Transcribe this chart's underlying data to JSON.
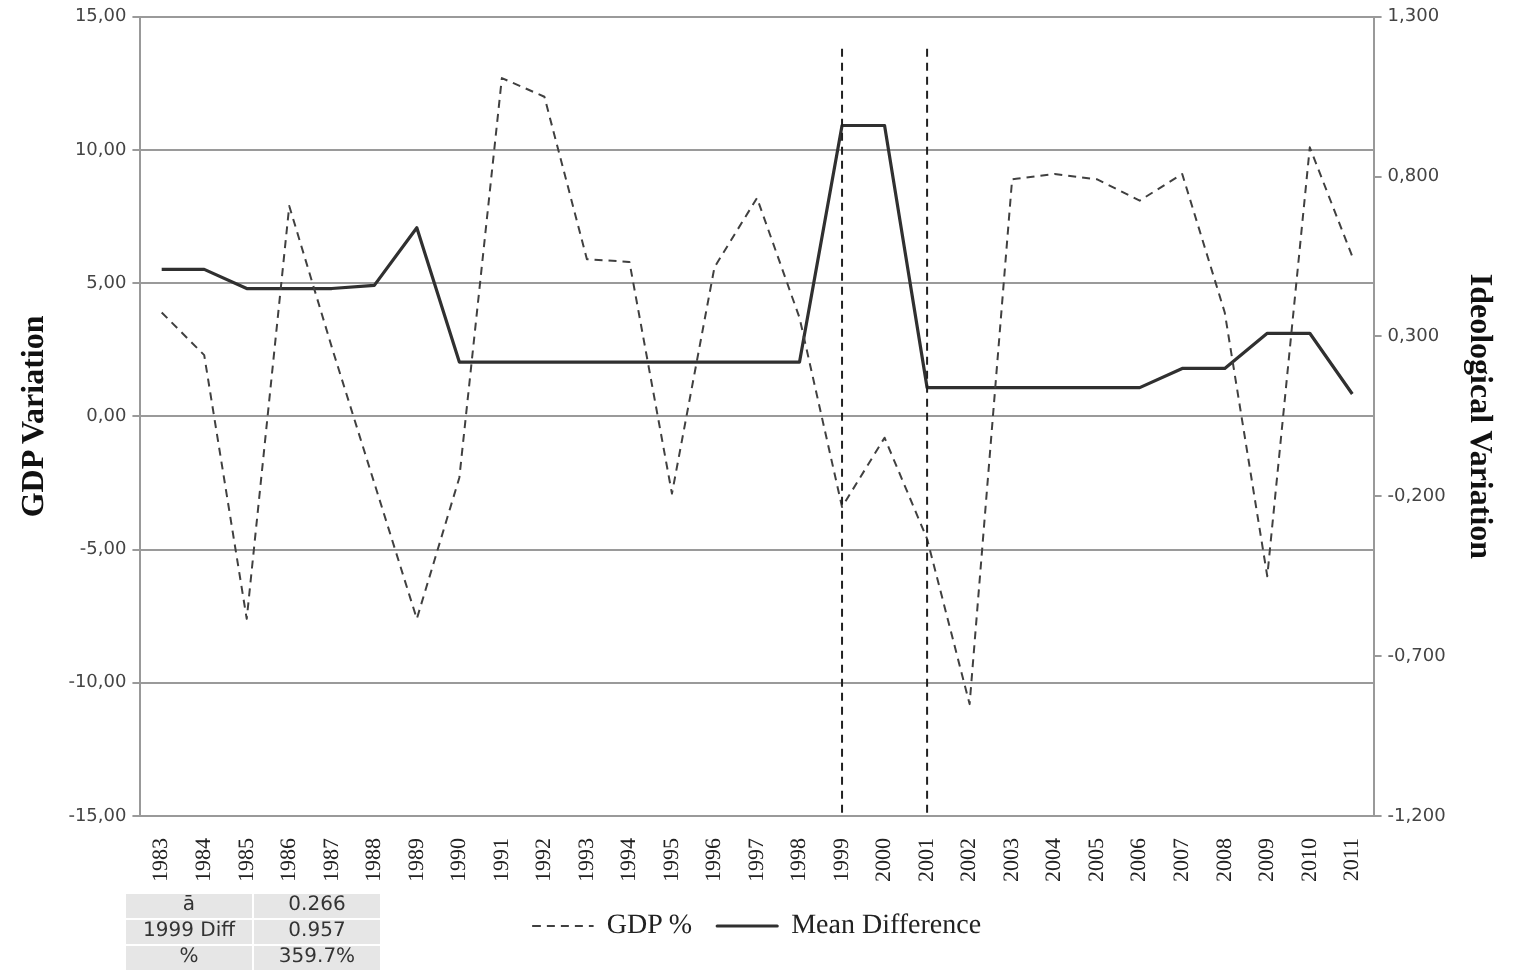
{
  "chart_data": {
    "type": "line",
    "xlabel": null,
    "ylabel": "GDP Variation",
    "y2label": "Ideological Variation",
    "categories": [
      "1983",
      "1984",
      "1985",
      "1986",
      "1987",
      "1988",
      "1989",
      "1990",
      "1991",
      "1992",
      "1993",
      "1994",
      "1995",
      "1996",
      "1997",
      "1998",
      "1999",
      "2000",
      "2001",
      "2002",
      "2003",
      "2004",
      "2005",
      "2006",
      "2007",
      "2008",
      "2009",
      "2010",
      "2011"
    ],
    "series": [
      {
        "name": "GDP %",
        "color": "#404040",
        "line_style": "dashed",
        "values": [
          3.9,
          2.3,
          -7.6,
          7.9,
          2.6,
          -2.5,
          -7.6,
          -2.3,
          12.7,
          12.0,
          5.9,
          5.8,
          -2.9,
          5.6,
          8.2,
          3.7,
          -3.4,
          -0.8,
          -4.6,
          -10.8,
          8.9,
          9.1,
          8.9,
          8.1,
          9.1,
          3.9,
          -6.0,
          10.1,
          6.0
        ]
      },
      {
        "name": "Mean Difference",
        "color": "#303030",
        "line_style": "solid",
        "axis": "y2",
        "values": [
          0.51,
          0.51,
          0.45,
          0.45,
          0.45,
          0.46,
          0.64,
          0.22,
          0.22,
          0.22,
          0.22,
          0.22,
          0.22,
          0.22,
          0.22,
          0.22,
          0.96,
          0.96,
          0.14,
          0.14,
          0.14,
          0.14,
          0.14,
          0.14,
          0.2,
          0.2,
          0.31,
          0.31,
          0.12
        ]
      }
    ],
    "ylim": [
      -15,
      15
    ],
    "yticks": [
      {
        "value": -15,
        "label": "-15,00"
      },
      {
        "value": -10,
        "label": "-10,00"
      },
      {
        "value": -5,
        "label": "-5,00"
      },
      {
        "value": 0,
        "label": "0,00"
      },
      {
        "value": 5,
        "label": "5,00"
      },
      {
        "value": 10,
        "label": "10,00"
      },
      {
        "value": 15,
        "label": "15,00"
      }
    ],
    "y2lim": [
      -1.2,
      1.3
    ],
    "y2ticks": [
      {
        "value": -1.2,
        "label": "-1,200"
      },
      {
        "value": -0.7,
        "label": "-0,700"
      },
      {
        "value": -0.2,
        "label": "-0,200"
      },
      {
        "value": 0.3,
        "label": "0,300"
      },
      {
        "value": 0.8,
        "label": "0,800"
      },
      {
        "value": 1.3,
        "label": "1,300"
      }
    ],
    "ref_lines": [
      {
        "axis": "x",
        "value": "1999",
        "color": "#202020",
        "line_style": "dashed"
      },
      {
        "axis": "x",
        "value": "2001",
        "color": "#202020",
        "line_style": "dashed"
      }
    ],
    "annotations": [
      "ā",
      "0.266",
      "1999 Diff",
      "0.957",
      "%",
      "359.7%"
    ],
    "grid": "y",
    "legend": "bottom",
    "marker": "none"
  }
}
